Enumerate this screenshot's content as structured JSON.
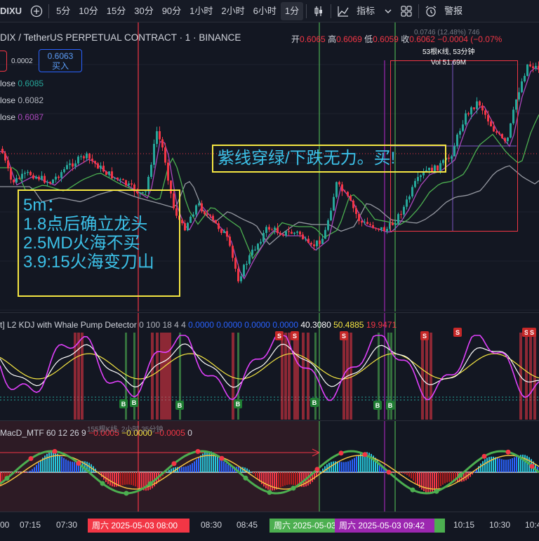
{
  "toolbar": {
    "symbol": "DIXU",
    "intervals": [
      "5分",
      "10分",
      "15分",
      "30分",
      "90分",
      "1小时",
      "2小时",
      "6小时",
      "1分"
    ],
    "active_interval": "1分",
    "indicators_label": "指标",
    "alert_label": "警报",
    "icons": [
      "plus-circle-icon",
      "candle-type-icon",
      "indicators-icon",
      "chevron-down-icon",
      "layout-icon",
      "alarm-clock-icon"
    ]
  },
  "header": {
    "title": "DIX / TetherUS PERPETUAL CONTRACT · 1 · BINANCE",
    "ohlc": [
      {
        "k": "开",
        "v": "0.6065"
      },
      {
        "k": "高",
        "v": "0.6069"
      },
      {
        "k": "低",
        "v": "0.6059"
      },
      {
        "k": "收",
        "v": "0.6062"
      },
      {
        "k": "",
        "v": "−0.0004 (−0.07%"
      }
    ],
    "spread": "0.0002",
    "buy_price": "0.6063",
    "buy_label": "买入"
  },
  "ma_legend": [
    {
      "label": "lose",
      "value": "0.6085",
      "color": "#26a69a"
    },
    {
      "label": "lose",
      "value": "0.6082",
      "color": "#b2b5be"
    },
    {
      "label": "lose",
      "value": "0.6087",
      "color": "#ab47bc"
    }
  ],
  "annotations": {
    "box1": [
      "5m：",
      "1.8点后确立龙头",
      "2.5MD火海不买",
      "3.9:15火海变刀山"
    ],
    "box2": "紫线穿绿/下跌无力。买!"
  },
  "measure": {
    "line1": "0.0746 (12.48%) 746",
    "line2": "53根K线, 53分钟",
    "line3": "Vol 51.69M"
  },
  "kdj": {
    "title": "t] L2 KDJ with Whale Pump Detector",
    "params": "0 100 18 4 4",
    "zeros": [
      "0.0000",
      "0.0000",
      "0.0000",
      "0.0000"
    ],
    "k": "40.3080",
    "d": "50.4885",
    "j": "19.9471",
    "buy_marker": "B",
    "sell_marker": "S"
  },
  "macd": {
    "title": "MacD_MTF 60 12 26 9",
    "v1": "−0.0005",
    "v2": "−0.0000",
    "v3": "−0.0005",
    "v4": "0",
    "measure": "155根K线, 2小时 35分钟"
  },
  "time_axis": {
    "ticks": [
      {
        "label": "00",
        "x": 0
      },
      {
        "label": "07:15",
        "x": 28
      },
      {
        "label": "07:30",
        "x": 80
      },
      {
        "label": "08:30",
        "x": 286
      },
      {
        "label": "08:45",
        "x": 337
      },
      {
        "label": "10:15",
        "x": 646
      },
      {
        "label": "10:30",
        "x": 697
      },
      {
        "label": "10:4",
        "x": 748
      }
    ],
    "labels": [
      {
        "text": "周六 2025-05-03   08:00",
        "bg": "#f23645"
      },
      {
        "text": "周六 2025-05-03",
        "bg": "#4caf50"
      },
      {
        "text": "周六 2025-05-03   09:42",
        "bg": "#9c27b0"
      }
    ]
  },
  "colors": {
    "bg": "#131722",
    "up": "#26a69a",
    "down": "#f23645",
    "k_line": "#f5e642",
    "d_line": "#ffffff",
    "j_line": "#e040fb",
    "ma_fast": "#ab47bc",
    "ma_mid": "#4caf50",
    "ma_slow": "#9598a1",
    "red_vline": "#f23645",
    "green_vline": "#4caf50",
    "purple_vline": "#9c27b0"
  }
}
